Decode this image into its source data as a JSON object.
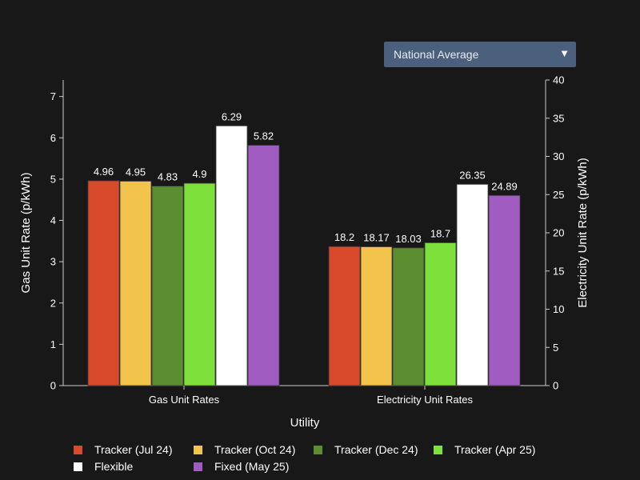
{
  "dropdown": {
    "selected": "National Average",
    "arrow": "▼"
  },
  "chart_data": {
    "type": "bar",
    "xlabel": "Utility",
    "ylabel_left": "Gas Unit Rate (p/kWh)",
    "ylabel_right": "Electricity Unit Rate (p/kWh)",
    "categories": [
      "Gas Unit Rates",
      "Electricity Unit Rates"
    ],
    "left_axis": {
      "range": [
        0,
        7.4
      ],
      "ticks": [
        0,
        1,
        2,
        3,
        4,
        5,
        6,
        7
      ]
    },
    "right_axis": {
      "range": [
        0,
        40
      ],
      "ticks": [
        0,
        5,
        10,
        15,
        20,
        25,
        30,
        35,
        40
      ]
    },
    "series": [
      {
        "name": "Tracker (Jul 24)",
        "color": "#d9492b",
        "values": [
          4.96,
          18.2
        ],
        "labels": [
          "4.96",
          "18.2"
        ]
      },
      {
        "name": "Tracker (Oct 24)",
        "color": "#f2c44c",
        "values": [
          4.95,
          18.17
        ],
        "labels": [
          "4.95",
          "18.17"
        ]
      },
      {
        "name": "Tracker (Dec 24)",
        "color": "#5a8e30",
        "values": [
          4.83,
          18.03
        ],
        "labels": [
          "4.83",
          "18.03"
        ]
      },
      {
        "name": "Tracker (Apr 25)",
        "color": "#7ee03a",
        "values": [
          4.9,
          18.7
        ],
        "labels": [
          "4.9",
          "18.7"
        ]
      },
      {
        "name": "Flexible",
        "color": "#ffffff",
        "values": [
          6.29,
          26.35
        ],
        "labels": [
          "6.29",
          "26.35"
        ]
      },
      {
        "name": "Fixed (May 25)",
        "color": "#a05cc0",
        "values": [
          5.82,
          24.89
        ],
        "labels": [
          "5.82",
          "24.89"
        ]
      }
    ],
    "grid": false,
    "legend_position": "bottom"
  }
}
